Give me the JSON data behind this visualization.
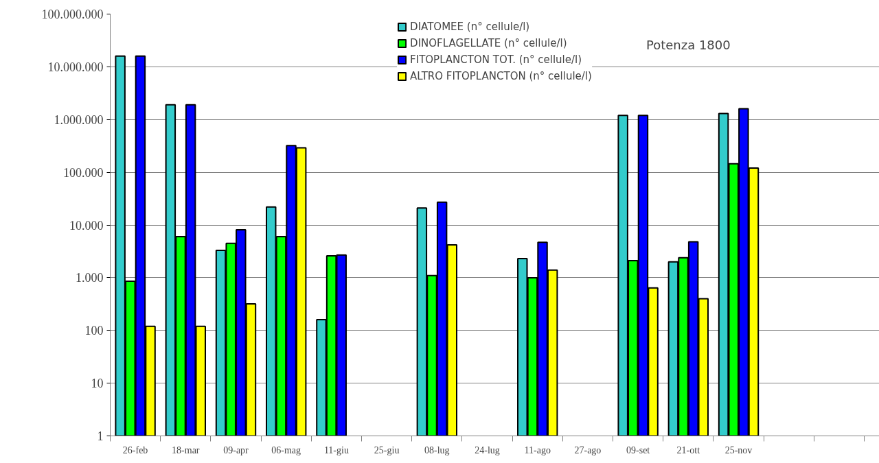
{
  "chart_data": {
    "type": "bar",
    "annotations": [
      "Potenza 1800"
    ],
    "categories": [
      "26-feb",
      "18-mar",
      "09-apr",
      "06-mag",
      "11-giu",
      "25-giu",
      "08-lug",
      "24-lug",
      "11-ago",
      "27-ago",
      "09-set",
      "21-ott",
      "25-nov",
      null,
      null
    ],
    "series": [
      {
        "name": "DIATOMEE (n° cellule/l)",
        "color": "#33cccc",
        "values": [
          16000000,
          1900000,
          3300,
          22000,
          160,
          null,
          21000,
          null,
          2300,
          null,
          1200000,
          2000,
          1300000,
          null,
          null
        ]
      },
      {
        "name": "DINOFLAGELLATE (n° cellule/l)",
        "color": "#00ff00",
        "values": [
          860,
          6000,
          4500,
          6000,
          2600,
          null,
          1100,
          null,
          1000,
          null,
          2100,
          2400,
          145000,
          null,
          null
        ]
      },
      {
        "name": "FITOPLANCTON TOT. (n° cellule/l)",
        "color": "#0000ff",
        "values": [
          16000000,
          1900000,
          8100,
          320000,
          2700,
          null,
          27000,
          null,
          4700,
          null,
          1200000,
          4800,
          1600000,
          null,
          null
        ]
      },
      {
        "name": "ALTRO FITOPLANCTON (n° cellule/l)",
        "color": "#ffff00",
        "values": [
          120,
          120,
          320,
          290000,
          null,
          null,
          4200,
          null,
          1400,
          null,
          640,
          400,
          120000,
          null,
          null
        ]
      }
    ],
    "log": "y",
    "ylim": [
      1,
      100000000
    ],
    "yticks": [
      1,
      10,
      100,
      {
        "value": 1000,
        "label": "1.000"
      },
      {
        "value": 10000,
        "label": "10.000"
      },
      {
        "value": 100000,
        "label": "100.000"
      },
      {
        "value": 1000000,
        "label": "1.000.000"
      },
      {
        "value": 10000000,
        "label": "10.000.000"
      },
      {
        "value": 100000000,
        "label": "100.000.000"
      }
    ],
    "grid": "y",
    "legend": "top"
  }
}
